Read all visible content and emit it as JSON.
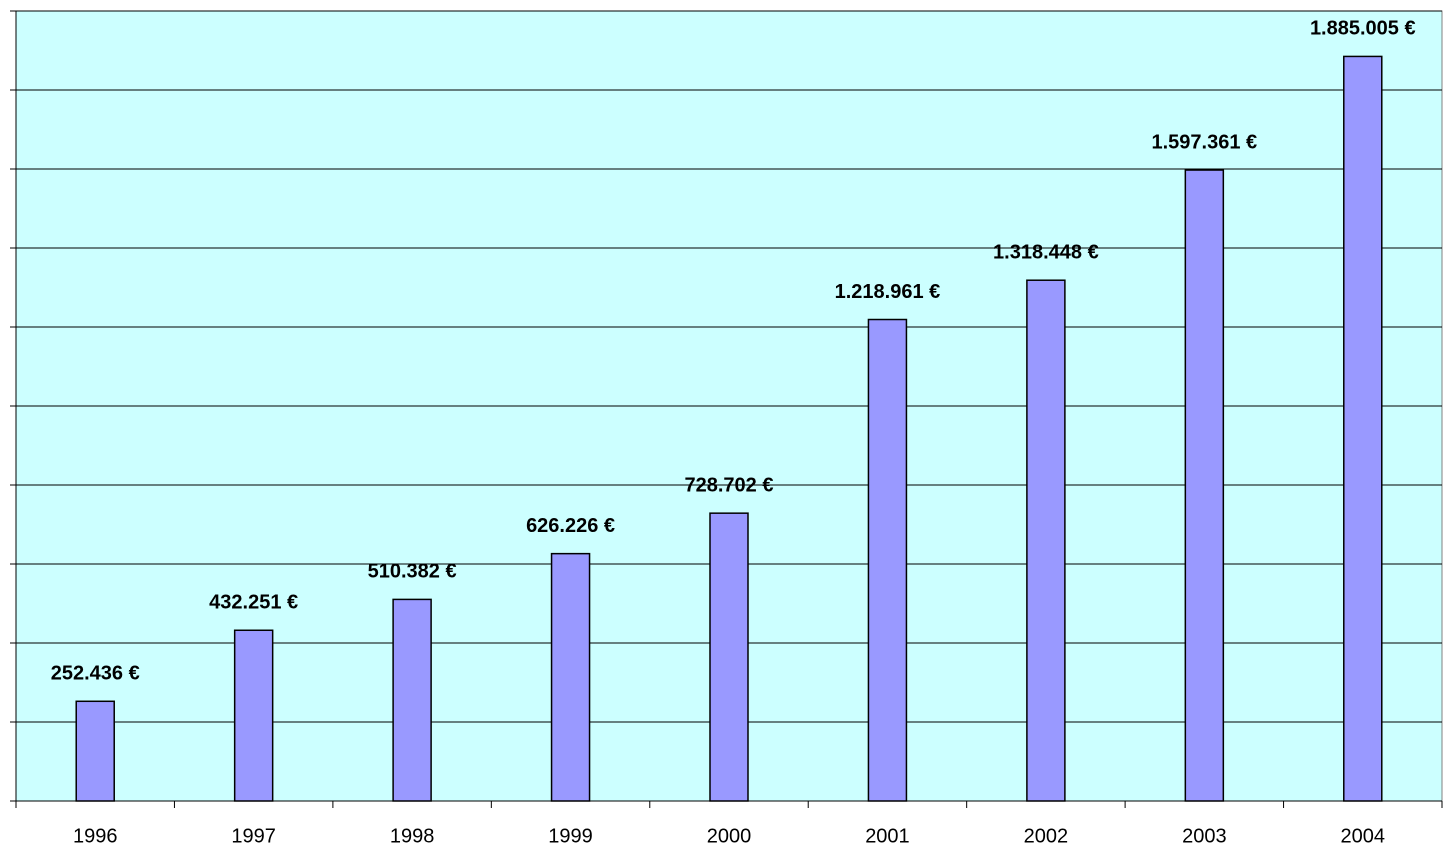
{
  "chart_data": {
    "type": "bar",
    "categories": [
      "1996",
      "1997",
      "1998",
      "1999",
      "2000",
      "2001",
      "2002",
      "2003",
      "2004"
    ],
    "values": [
      252436,
      432251,
      510382,
      626226,
      728702,
      1218961,
      1318448,
      1597361,
      1885005
    ],
    "value_labels": [
      "252.436 €",
      "432.251 €",
      "510.382 €",
      "626.226 €",
      "728.702 €",
      "1.218.961 €",
      "1.318.448 €",
      "1.597.361 €",
      "1.885.005 €"
    ],
    "color": "#9999ff",
    "background": "#ccffff",
    "ylim": [
      0,
      2000000
    ],
    "yticks": [
      0,
      200000,
      400000,
      600000,
      800000,
      1000000,
      1200000,
      1400000,
      1600000,
      1800000,
      2000000
    ],
    "grid": true
  }
}
